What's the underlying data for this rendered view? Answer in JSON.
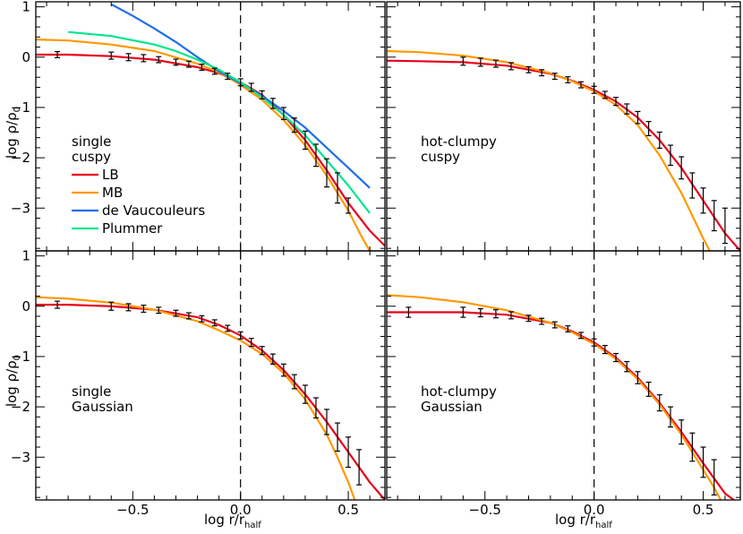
{
  "chart_data": {
    "type": "line",
    "layout": "2x2 grid, shared axes",
    "xlim": [
      -0.95,
      0.67
    ],
    "ylim": [
      -3.85,
      1.1
    ],
    "x_ticks": [
      -0.5,
      0.0,
      0.5
    ],
    "x_tick_labels": [
      "−0.5",
      "0.0",
      "0.5"
    ],
    "y_ticks": [
      1,
      0,
      -1,
      -2,
      -3
    ],
    "y_tick_labels": [
      "1",
      "0",
      "−1",
      "−2",
      "−3"
    ],
    "xlabel": "log r/r_half",
    "xlabel_main": "log r/r",
    "xlabel_sub": "half",
    "ylabel": "log ρ/ρ₀",
    "ylabel_main": "log ρ/ρ",
    "ylabel_sub": "0",
    "reference_line": {
      "x": 0.0,
      "style": "dashed"
    },
    "series_colors": {
      "LB": "#e8001c",
      "MB": "#ff9900",
      "de Vaucouleurs": "#1e6ee8",
      "Plummer": "#00e68a"
    },
    "legend": {
      "placement": "left-middle of top-left panel",
      "entries": [
        {
          "name": "LB",
          "color": "#e8001c"
        },
        {
          "name": "MB",
          "color": "#ff9900"
        },
        {
          "name": "de Vaucouleurs",
          "color": "#1e6ee8"
        },
        {
          "name": "Plummer",
          "color": "#00e68a"
        }
      ]
    },
    "panels": [
      {
        "id": "top-left",
        "label_lines": [
          "single",
          "cuspy"
        ],
        "show_x_ticklabels": false,
        "show_y_ticklabels": true,
        "series": [
          {
            "name": "LB",
            "x": [
              -0.95,
              -0.8,
              -0.6,
              -0.4,
              -0.2,
              -0.1,
              0.0,
              0.1,
              0.2,
              0.3,
              0.4,
              0.5,
              0.6,
              0.67
            ],
            "y": [
              0.05,
              0.05,
              0.02,
              -0.05,
              -0.2,
              -0.32,
              -0.5,
              -0.75,
              -1.15,
              -1.65,
              -2.25,
              -2.9,
              -3.45,
              -3.75
            ]
          },
          {
            "name": "MB",
            "x": [
              -0.95,
              -0.8,
              -0.6,
              -0.4,
              -0.2,
              -0.1,
              0.0,
              0.1,
              0.2,
              0.3,
              0.4,
              0.5,
              0.56,
              0.6
            ],
            "y": [
              0.35,
              0.33,
              0.25,
              0.12,
              -0.13,
              -0.3,
              -0.55,
              -0.85,
              -1.25,
              -1.75,
              -2.35,
              -3.05,
              -3.55,
              -3.85
            ]
          },
          {
            "name": "de Vaucouleurs",
            "x": [
              -0.6,
              -0.5,
              -0.4,
              -0.3,
              -0.2,
              -0.1,
              0.0,
              0.1,
              0.2,
              0.3,
              0.4,
              0.5,
              0.6
            ],
            "y": [
              1.05,
              0.82,
              0.57,
              0.3,
              0.0,
              -0.28,
              -0.52,
              -0.77,
              -1.07,
              -1.4,
              -1.8,
              -2.2,
              -2.6
            ]
          },
          {
            "name": "Plummer",
            "x": [
              -0.8,
              -0.6,
              -0.4,
              -0.3,
              -0.2,
              -0.1,
              0.0,
              0.1,
              0.2,
              0.3,
              0.4,
              0.5,
              0.6
            ],
            "y": [
              0.5,
              0.42,
              0.25,
              0.12,
              -0.05,
              -0.25,
              -0.5,
              -0.8,
              -1.15,
              -1.55,
              -2.05,
              -2.55,
              -3.1
            ]
          }
        ]
      },
      {
        "id": "top-right",
        "label_lines": [
          "hot-clumpy",
          "cuspy"
        ],
        "show_x_ticklabels": false,
        "show_y_ticklabels": false,
        "series": [
          {
            "name": "LB",
            "x": [
              -0.95,
              -0.8,
              -0.6,
              -0.4,
              -0.2,
              -0.1,
              0.0,
              0.1,
              0.2,
              0.3,
              0.4,
              0.5,
              0.6,
              0.67
            ],
            "y": [
              -0.07,
              -0.08,
              -0.1,
              -0.17,
              -0.33,
              -0.47,
              -0.65,
              -0.88,
              -1.2,
              -1.65,
              -2.2,
              -2.85,
              -3.5,
              -3.85
            ]
          },
          {
            "name": "MB",
            "x": [
              -0.95,
              -0.8,
              -0.6,
              -0.4,
              -0.2,
              -0.1,
              0.0,
              0.1,
              0.2,
              0.3,
              0.4,
              0.45,
              0.5,
              0.53
            ],
            "y": [
              0.12,
              0.1,
              0.03,
              -0.1,
              -0.32,
              -0.48,
              -0.68,
              -0.95,
              -1.35,
              -1.95,
              -2.7,
              -3.15,
              -3.6,
              -3.85
            ]
          }
        ]
      },
      {
        "id": "bottom-left",
        "label_lines": [
          "single",
          "Gaussian"
        ],
        "show_x_ticklabels": true,
        "show_y_ticklabels": true,
        "series": [
          {
            "name": "LB",
            "x": [
              -0.95,
              -0.8,
              -0.6,
              -0.4,
              -0.2,
              -0.1,
              0.0,
              0.1,
              0.2,
              0.3,
              0.4,
              0.5,
              0.6,
              0.67
            ],
            "y": [
              0.03,
              0.03,
              0.0,
              -0.07,
              -0.22,
              -0.37,
              -0.58,
              -0.88,
              -1.27,
              -1.75,
              -2.3,
              -2.9,
              -3.5,
              -3.85
            ]
          },
          {
            "name": "MB",
            "x": [
              -0.95,
              -0.8,
              -0.6,
              -0.4,
              -0.2,
              -0.1,
              0.0,
              0.1,
              0.2,
              0.3,
              0.4,
              0.45,
              0.5,
              0.53
            ],
            "y": [
              0.18,
              0.15,
              0.07,
              -0.07,
              -0.3,
              -0.48,
              -0.68,
              -0.95,
              -1.33,
              -1.85,
              -2.55,
              -3.0,
              -3.5,
              -3.85
            ]
          }
        ]
      },
      {
        "id": "bottom-right",
        "label_lines": [
          "hot-clumpy",
          "Gaussian"
        ],
        "show_x_ticklabels": true,
        "show_y_ticklabels": false,
        "series": [
          {
            "name": "LB",
            "x": [
              -0.95,
              -0.8,
              -0.6,
              -0.4,
              -0.2,
              -0.1,
              0.0,
              0.1,
              0.2,
              0.3,
              0.4,
              0.5,
              0.6,
              0.64
            ],
            "y": [
              -0.12,
              -0.12,
              -0.12,
              -0.17,
              -0.33,
              -0.5,
              -0.72,
              -1.02,
              -1.42,
              -1.92,
              -2.5,
              -3.12,
              -3.72,
              -3.85
            ]
          },
          {
            "name": "MB",
            "x": [
              -0.95,
              -0.8,
              -0.6,
              -0.4,
              -0.2,
              -0.1,
              0.0,
              0.1,
              0.2,
              0.3,
              0.4,
              0.5,
              0.55,
              0.58
            ],
            "y": [
              0.22,
              0.18,
              0.08,
              -0.08,
              -0.33,
              -0.52,
              -0.75,
              -1.05,
              -1.45,
              -1.95,
              -2.55,
              -3.25,
              -3.6,
              -3.85
            ]
          }
        ]
      }
    ],
    "error_bar_series": [
      {
        "panel": "top-left",
        "points": [
          [
            -0.85,
            0.05,
            0.06
          ],
          [
            -0.6,
            0.03,
            0.07
          ],
          [
            -0.52,
            0.0,
            0.07
          ],
          [
            -0.45,
            -0.02,
            0.07
          ],
          [
            -0.38,
            -0.05,
            0.06
          ],
          [
            -0.3,
            -0.1,
            0.06
          ],
          [
            -0.24,
            -0.14,
            0.06
          ],
          [
            -0.18,
            -0.2,
            0.06
          ],
          [
            -0.12,
            -0.28,
            0.06
          ],
          [
            -0.06,
            -0.38,
            0.06
          ],
          [
            0.0,
            -0.5,
            0.07
          ],
          [
            0.05,
            -0.6,
            0.08
          ],
          [
            0.1,
            -0.75,
            0.08
          ],
          [
            0.15,
            -0.92,
            0.1
          ],
          [
            0.2,
            -1.12,
            0.12
          ],
          [
            0.25,
            -1.35,
            0.14
          ],
          [
            0.3,
            -1.65,
            0.18
          ],
          [
            0.35,
            -1.95,
            0.22
          ],
          [
            0.4,
            -2.3,
            0.28
          ],
          [
            0.45,
            -2.6,
            0.3
          ],
          [
            0.5,
            -2.95,
            0.15
          ]
        ]
      },
      {
        "panel": "top-right",
        "points": [
          [
            -0.6,
            -0.08,
            0.08
          ],
          [
            -0.52,
            -0.1,
            0.08
          ],
          [
            -0.45,
            -0.13,
            0.07
          ],
          [
            -0.38,
            -0.18,
            0.07
          ],
          [
            -0.3,
            -0.25,
            0.06
          ],
          [
            -0.24,
            -0.31,
            0.06
          ],
          [
            -0.18,
            -0.38,
            0.06
          ],
          [
            -0.12,
            -0.45,
            0.06
          ],
          [
            -0.06,
            -0.55,
            0.06
          ],
          [
            0.0,
            -0.65,
            0.07
          ],
          [
            0.05,
            -0.75,
            0.07
          ],
          [
            0.1,
            -0.88,
            0.08
          ],
          [
            0.15,
            -1.03,
            0.1
          ],
          [
            0.2,
            -1.2,
            0.12
          ],
          [
            0.25,
            -1.42,
            0.14
          ],
          [
            0.3,
            -1.65,
            0.16
          ],
          [
            0.35,
            -1.95,
            0.2
          ],
          [
            0.4,
            -2.2,
            0.22
          ],
          [
            0.45,
            -2.55,
            0.25
          ],
          [
            0.5,
            -2.85,
            0.25
          ],
          [
            0.55,
            -3.15,
            0.3
          ],
          [
            0.6,
            -3.35,
            0.35
          ]
        ]
      },
      {
        "panel": "bottom-left",
        "points": [
          [
            -0.85,
            0.03,
            0.07
          ],
          [
            -0.6,
            0.0,
            0.08
          ],
          [
            -0.52,
            -0.02,
            0.07
          ],
          [
            -0.45,
            -0.05,
            0.07
          ],
          [
            -0.38,
            -0.08,
            0.06
          ],
          [
            -0.3,
            -0.14,
            0.06
          ],
          [
            -0.24,
            -0.19,
            0.06
          ],
          [
            -0.18,
            -0.25,
            0.06
          ],
          [
            -0.12,
            -0.33,
            0.06
          ],
          [
            -0.06,
            -0.44,
            0.06
          ],
          [
            0.0,
            -0.58,
            0.07
          ],
          [
            0.05,
            -0.72,
            0.08
          ],
          [
            0.1,
            -0.88,
            0.08
          ],
          [
            0.15,
            -1.05,
            0.1
          ],
          [
            0.2,
            -1.27,
            0.12
          ],
          [
            0.25,
            -1.5,
            0.14
          ],
          [
            0.3,
            -1.75,
            0.18
          ],
          [
            0.35,
            -2.02,
            0.2
          ],
          [
            0.4,
            -2.3,
            0.25
          ],
          [
            0.45,
            -2.6,
            0.28
          ],
          [
            0.5,
            -2.9,
            0.3
          ],
          [
            0.55,
            -3.2,
            0.35
          ]
        ]
      },
      {
        "panel": "bottom-right",
        "points": [
          [
            -0.85,
            -0.12,
            0.1
          ],
          [
            -0.6,
            -0.12,
            0.1
          ],
          [
            -0.52,
            -0.13,
            0.08
          ],
          [
            -0.45,
            -0.15,
            0.08
          ],
          [
            -0.38,
            -0.18,
            0.07
          ],
          [
            -0.3,
            -0.24,
            0.06
          ],
          [
            -0.24,
            -0.3,
            0.06
          ],
          [
            -0.18,
            -0.37,
            0.06
          ],
          [
            -0.12,
            -0.45,
            0.06
          ],
          [
            -0.06,
            -0.58,
            0.06
          ],
          [
            0.0,
            -0.72,
            0.07
          ],
          [
            0.05,
            -0.86,
            0.08
          ],
          [
            0.1,
            -1.02,
            0.08
          ],
          [
            0.15,
            -1.2,
            0.1
          ],
          [
            0.2,
            -1.42,
            0.12
          ],
          [
            0.25,
            -1.65,
            0.14
          ],
          [
            0.3,
            -1.92,
            0.16
          ],
          [
            0.35,
            -2.2,
            0.2
          ],
          [
            0.4,
            -2.5,
            0.24
          ],
          [
            0.45,
            -2.8,
            0.28
          ],
          [
            0.5,
            -3.1,
            0.3
          ],
          [
            0.55,
            -3.4,
            0.35
          ]
        ]
      }
    ]
  }
}
